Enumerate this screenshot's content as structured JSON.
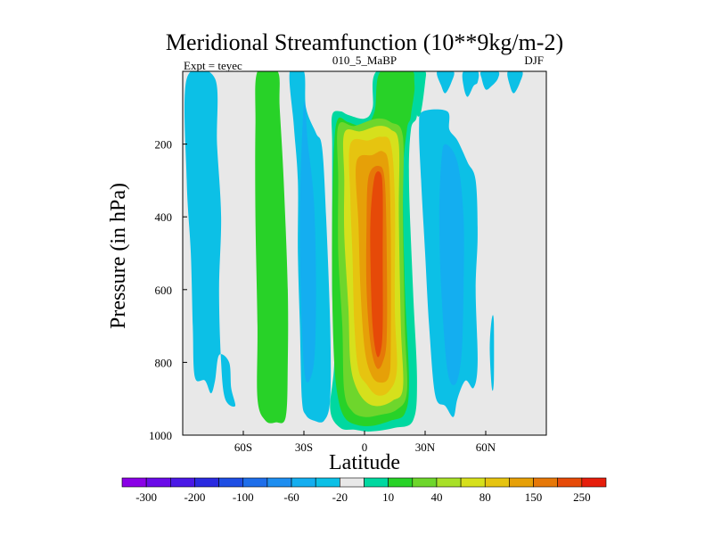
{
  "chart_data": {
    "type": "heatmap",
    "title": "Meridional Streamfunction (10**9kg/m-2)",
    "left_label": "Expt = teyec",
    "center_label": "010_5_MaBP",
    "right_label": "DJF",
    "xlabel": "Latitude",
    "ylabel": "Pressure (in hPa)",
    "xlim": [
      -90,
      90
    ],
    "ylim": [
      1000,
      0
    ],
    "x_ticks": [
      {
        "value": -60,
        "label": "60S"
      },
      {
        "value": -30,
        "label": "30S"
      },
      {
        "value": 0,
        "label": "0"
      },
      {
        "value": 30,
        "label": "30N"
      },
      {
        "value": 60,
        "label": "60N"
      }
    ],
    "y_ticks": [
      {
        "value": 200,
        "label": "200"
      },
      {
        "value": 400,
        "label": "400"
      },
      {
        "value": 600,
        "label": "600"
      },
      {
        "value": 800,
        "label": "800"
      },
      {
        "value": 1000,
        "label": "1000"
      }
    ],
    "background_color": "#e8e8e8",
    "colorbar": {
      "colors": [
        "#8a00e6",
        "#6a0ae8",
        "#4a18e6",
        "#2a2ae0",
        "#1e4ee4",
        "#1e6eea",
        "#1e8ef0",
        "#14aef0",
        "#0cc0e6",
        "#e8e8e8",
        "#00d8a0",
        "#28d228",
        "#6ed62c",
        "#a8e028",
        "#d6e01c",
        "#e6c410",
        "#e6a008",
        "#e67808",
        "#e64a08",
        "#e61e0c"
      ],
      "labels": [
        "-300",
        "-200",
        "-100",
        "-60",
        "-20",
        "10",
        "40",
        "80",
        "150",
        "250"
      ]
    },
    "regions": [
      {
        "name": "south-polar-negative",
        "level": "-20",
        "color": "#0cc0e6",
        "outline": [
          [
            -88,
            20
          ],
          [
            -74,
            20
          ],
          [
            -73,
            200
          ],
          [
            -71,
            400
          ],
          [
            -72,
            600
          ],
          [
            -71,
            800
          ],
          [
            -69,
            900
          ],
          [
            -64,
            920
          ],
          [
            -66,
            870
          ],
          [
            -67,
            800
          ],
          [
            -72,
            780
          ],
          [
            -74,
            850
          ],
          [
            -76,
            885
          ],
          [
            -79,
            850
          ],
          [
            -84,
            840
          ],
          [
            -85,
            700
          ],
          [
            -86,
            500
          ],
          [
            -88,
            300
          ]
        ]
      },
      {
        "name": "southern-mid-negative",
        "level": "-20",
        "color": "#0cc0e6",
        "outline": [
          [
            -37,
            0
          ],
          [
            -30,
            0
          ],
          [
            -29,
            100
          ],
          [
            -24,
            170
          ],
          [
            -21,
            210
          ],
          [
            -19,
            400
          ],
          [
            -17,
            700
          ],
          [
            -17,
            900
          ],
          [
            -20,
            960
          ],
          [
            -25,
            960
          ],
          [
            -29,
            945
          ],
          [
            -31,
            900
          ],
          [
            -32,
            700
          ],
          [
            -33,
            500
          ],
          [
            -33,
            300
          ],
          [
            -35,
            150
          ]
        ]
      },
      {
        "name": "southern-mid-inner",
        "level": "-60",
        "color": "#14aef0",
        "outline": [
          [
            -30,
            90
          ],
          [
            -28,
            200
          ],
          [
            -25,
            360
          ],
          [
            -24,
            600
          ],
          [
            -25,
            800
          ],
          [
            -29,
            850
          ],
          [
            -31,
            700
          ],
          [
            -32,
            400
          ]
        ]
      },
      {
        "name": "southern-ferrel-positive",
        "level": "40",
        "color": "#28d228",
        "outline": [
          [
            -53,
            0
          ],
          [
            -43,
            0
          ],
          [
            -42,
            100
          ],
          [
            -40,
            300
          ],
          [
            -38,
            600
          ],
          [
            -38,
            800
          ],
          [
            -39,
            950
          ],
          [
            -44,
            965
          ],
          [
            -49,
            960
          ],
          [
            -53,
            900
          ],
          [
            -53,
            700
          ],
          [
            -54,
            400
          ],
          [
            -54,
            150
          ]
        ]
      },
      {
        "name": "hadley-cell-10",
        "level": "10",
        "color": "#00d8a0",
        "outline": [
          [
            6,
            0
          ],
          [
            26,
            0
          ],
          [
            26,
            120
          ],
          [
            23,
            160
          ],
          [
            22,
            300
          ],
          [
            24,
            600
          ],
          [
            26,
            850
          ],
          [
            24,
            960
          ],
          [
            15,
            980
          ],
          [
            3,
            990
          ],
          [
            -5,
            985
          ],
          [
            -12,
            980
          ],
          [
            -17,
            930
          ],
          [
            -15,
            800
          ],
          [
            -16,
            600
          ],
          [
            -16,
            400
          ],
          [
            -16,
            200
          ],
          [
            -16,
            120
          ],
          [
            -12,
            110
          ],
          [
            -8,
            120
          ],
          [
            0,
            130
          ],
          [
            4,
            100
          ]
        ]
      },
      {
        "name": "hadley-cell-40",
        "level": "40",
        "color": "#28d228",
        "outline": [
          [
            8,
            0
          ],
          [
            24,
            0
          ],
          [
            23,
            120
          ],
          [
            21,
            160
          ],
          [
            19,
            300
          ],
          [
            20,
            600
          ],
          [
            22,
            850
          ],
          [
            20,
            940
          ],
          [
            13,
            960
          ],
          [
            3,
            975
          ],
          [
            -5,
            970
          ],
          [
            -10,
            950
          ],
          [
            -13,
            900
          ],
          [
            -15,
            800
          ],
          [
            -16,
            600
          ],
          [
            -16,
            400
          ],
          [
            -15,
            200
          ],
          [
            -13,
            130
          ],
          [
            -8,
            140
          ],
          [
            0,
            150
          ],
          [
            5,
            110
          ]
        ]
      },
      {
        "name": "hadley-cell-80",
        "level": "80",
        "color": "#6ed62c",
        "outline": [
          [
            -13,
            150
          ],
          [
            -5,
            150
          ],
          [
            6,
            130
          ],
          [
            13,
            140
          ],
          [
            19,
            180
          ],
          [
            19,
            400
          ],
          [
            20,
            700
          ],
          [
            21,
            880
          ],
          [
            16,
            930
          ],
          [
            7,
            945
          ],
          [
            0,
            950
          ],
          [
            -6,
            935
          ],
          [
            -10,
            880
          ],
          [
            -11,
            700
          ],
          [
            -13,
            500
          ],
          [
            -13,
            300
          ]
        ]
      },
      {
        "name": "hadley-cell-150",
        "level": "150",
        "color": "#d6e01c",
        "outline": [
          [
            -10,
            170
          ],
          [
            -2,
            165
          ],
          [
            7,
            150
          ],
          [
            13,
            160
          ],
          [
            17,
            200
          ],
          [
            17,
            400
          ],
          [
            18,
            700
          ],
          [
            19,
            870
          ],
          [
            14,
            905
          ],
          [
            7,
            920
          ],
          [
            1,
            910
          ],
          [
            -4,
            870
          ],
          [
            -7,
            800
          ],
          [
            -8,
            650
          ],
          [
            -10,
            450
          ],
          [
            -10,
            300
          ]
        ]
      },
      {
        "name": "hadley-cell-200",
        "level": "200",
        "color": "#e6c410",
        "outline": [
          [
            -7,
            200
          ],
          [
            2,
            190
          ],
          [
            8,
            180
          ],
          [
            13,
            200
          ],
          [
            15,
            350
          ],
          [
            15,
            650
          ],
          [
            16,
            820
          ],
          [
            12,
            880
          ],
          [
            6,
            890
          ],
          [
            1,
            860
          ],
          [
            -3,
            820
          ],
          [
            -5,
            700
          ],
          [
            -6,
            500
          ],
          [
            -7,
            350
          ]
        ]
      },
      {
        "name": "hadley-cell-250",
        "level": "250",
        "color": "#e6a008",
        "outline": [
          [
            -4,
            250
          ],
          [
            4,
            230
          ],
          [
            9,
            220
          ],
          [
            12,
            260
          ],
          [
            13,
            450
          ],
          [
            13,
            750
          ],
          [
            12,
            840
          ],
          [
            7,
            855
          ],
          [
            3,
            830
          ],
          [
            0,
            760
          ],
          [
            -2,
            600
          ],
          [
            -3,
            420
          ]
        ]
      },
      {
        "name": "hadley-cell-300",
        "level": "300",
        "color": "#e67808",
        "outline": [
          [
            2,
            290
          ],
          [
            7,
            260
          ],
          [
            10,
            300
          ],
          [
            11,
            500
          ],
          [
            11,
            730
          ],
          [
            9,
            800
          ],
          [
            6,
            815
          ],
          [
            3,
            750
          ],
          [
            1,
            600
          ],
          [
            1,
            420
          ]
        ]
      },
      {
        "name": "hadley-cell-core",
        "level": "350",
        "color": "#e64a08",
        "outline": [
          [
            5,
            290
          ],
          [
            8,
            280
          ],
          [
            9,
            330
          ],
          [
            9,
            500
          ],
          [
            9,
            700
          ],
          [
            8,
            770
          ],
          [
            6,
            780
          ],
          [
            4,
            700
          ],
          [
            3,
            540
          ],
          [
            3,
            400
          ]
        ]
      },
      {
        "name": "northern-mid-negative",
        "level": "-20",
        "color": "#0cc0e6",
        "outline": [
          [
            29,
            110
          ],
          [
            41,
            110
          ],
          [
            42,
            160
          ],
          [
            46,
            190
          ],
          [
            51,
            250
          ],
          [
            55,
            300
          ],
          [
            56,
            450
          ],
          [
            55,
            600
          ],
          [
            56,
            800
          ],
          [
            54,
            870
          ],
          [
            50,
            850
          ],
          [
            46,
            900
          ],
          [
            44,
            950
          ],
          [
            40,
            920
          ],
          [
            35,
            890
          ],
          [
            32,
            700
          ],
          [
            30,
            500
          ],
          [
            28,
            300
          ],
          [
            27,
            150
          ]
        ]
      },
      {
        "name": "northern-mid-inner",
        "level": "-60",
        "color": "#14aef0",
        "outline": [
          [
            40,
            200
          ],
          [
            46,
            250
          ],
          [
            49,
            400
          ],
          [
            49,
            600
          ],
          [
            48,
            780
          ],
          [
            45,
            860
          ],
          [
            41,
            820
          ],
          [
            38,
            600
          ],
          [
            37,
            400
          ],
          [
            38,
            250
          ]
        ]
      },
      {
        "name": "northern-tropopause-strip",
        "level": "40",
        "color": "#00d8a0",
        "outline": [
          [
            25,
            0
          ],
          [
            30,
            0
          ],
          [
            30,
            30
          ],
          [
            28,
            110
          ],
          [
            26,
            120
          ],
          [
            25,
            60
          ]
        ]
      },
      {
        "name": "northern-upper-negative",
        "level": "-20",
        "color": "#0cc0e6",
        "outline": [
          [
            36,
            0
          ],
          [
            44,
            0
          ],
          [
            43,
            30
          ],
          [
            40,
            60
          ],
          [
            38,
            40
          ]
        ]
      },
      {
        "name": "northern-upper-negative-2",
        "level": "-20",
        "color": "#0cc0e6",
        "outline": [
          [
            49,
            0
          ],
          [
            56,
            0
          ],
          [
            56,
            30
          ],
          [
            54,
            40
          ],
          [
            51,
            70
          ],
          [
            49,
            40
          ]
        ]
      },
      {
        "name": "north-polar-negative-a",
        "level": "-20",
        "color": "#0cc0e6",
        "outline": [
          [
            58,
            0
          ],
          [
            66,
            0
          ],
          [
            66,
            20
          ],
          [
            63,
            40
          ],
          [
            60,
            50
          ],
          [
            58,
            20
          ]
        ]
      },
      {
        "name": "north-polar-negative-b",
        "level": "-20",
        "color": "#0cc0e6",
        "outline": [
          [
            71,
            0
          ],
          [
            78,
            0
          ],
          [
            77,
            30
          ],
          [
            74,
            60
          ],
          [
            72,
            40
          ]
        ]
      },
      {
        "name": "north-surface-sliver",
        "level": "-20",
        "color": "#0cc0e6",
        "outline": [
          [
            63,
            680
          ],
          [
            64,
            690
          ],
          [
            64,
            850
          ],
          [
            63,
            870
          ],
          [
            62,
            760
          ]
        ]
      }
    ]
  }
}
